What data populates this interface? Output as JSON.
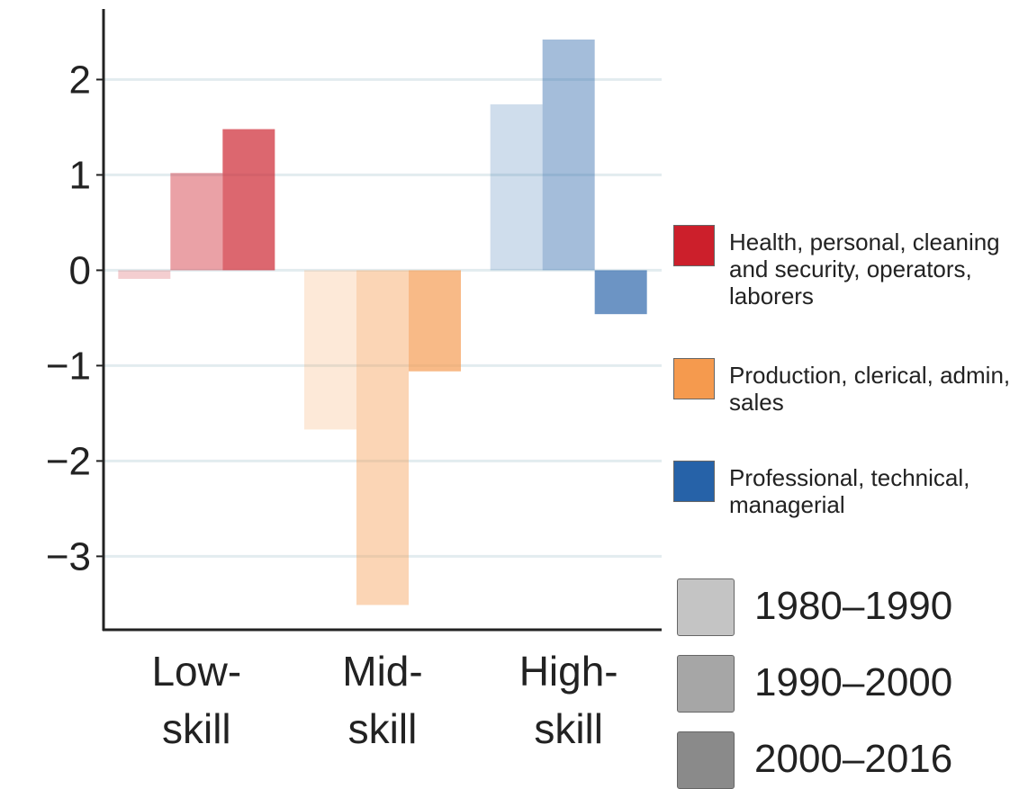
{
  "chart_data": {
    "type": "bar",
    "categories": [
      [
        "Low-",
        "skill"
      ],
      [
        "Mid-",
        "skill"
      ],
      [
        "High-",
        "skill"
      ]
    ],
    "groups": [
      {
        "name": "Health, personal, cleaning and security, operators, laborers",
        "color": "#cc1f2b"
      },
      {
        "name": "Production, clerical, admin, sales",
        "color": "#f59a4e"
      },
      {
        "name": "Professional, technical, managerial",
        "color": "#2662a8"
      }
    ],
    "series": [
      {
        "name": "1980–1990",
        "color": "#c4c4c4",
        "values": [
          -0.09,
          -1.67,
          1.74
        ]
      },
      {
        "name": "1990–2000",
        "color": "#a6a6a6",
        "values": [
          1.02,
          -3.51,
          2.42
        ]
      },
      {
        "name": "2000–2016",
        "color": "#8a8a8a",
        "values": [
          1.48,
          -1.06,
          -0.46
        ]
      }
    ],
    "ylim": [
      -3.77,
      2.74
    ],
    "yticks": [
      {
        "value": -3,
        "label": "−3"
      },
      {
        "value": -2,
        "label": "−2"
      },
      {
        "value": -1,
        "label": "−1"
      },
      0,
      1,
      2
    ],
    "grid": true
  }
}
